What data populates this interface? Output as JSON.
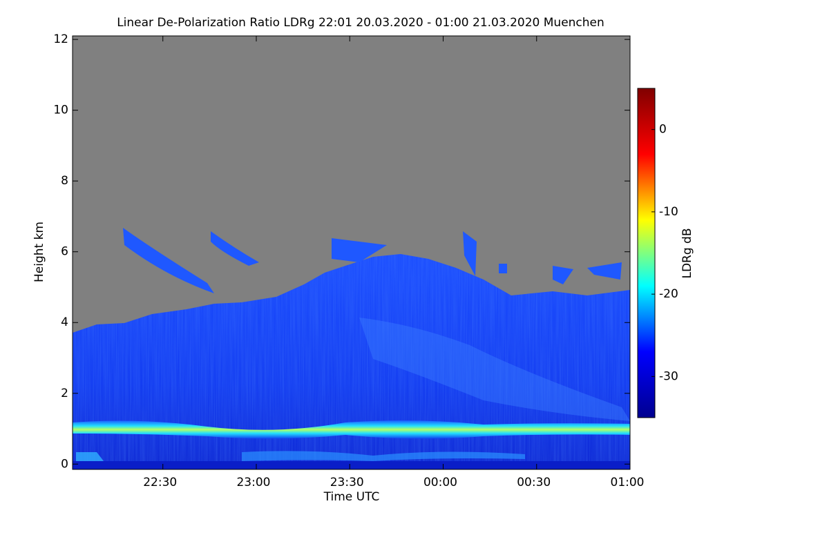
{
  "chart_data": {
    "type": "heatmap",
    "title": "Linear De-Polarization Ratio LDRg   22:01 20.03.2020 - 01:00 21.03.2020 Muenchen",
    "xlabel": "Time UTC",
    "ylabel": "Height km",
    "colorbar_label": "LDRg dB",
    "xlim": [
      1,
      180
    ],
    "xticks": [
      {
        "value": 30,
        "label": "22:30"
      },
      {
        "value": 60,
        "label": "23:00"
      },
      {
        "value": 90,
        "label": "23:30"
      },
      {
        "value": 120,
        "label": "00:00"
      },
      {
        "value": 150,
        "label": "00:30"
      },
      {
        "value": 180,
        "label": "01:00"
      }
    ],
    "ylim": [
      -0.15,
      12.1
    ],
    "yticks": [
      0,
      2,
      4,
      6,
      8,
      10,
      12
    ],
    "clim": [
      -35,
      5
    ],
    "cticks": [
      -30,
      -20,
      -10,
      0
    ],
    "colormap": [
      "#00008f",
      "#0000ff",
      "#00ffff",
      "#ffff00",
      "#ff0000",
      "#800000"
    ]
  }
}
